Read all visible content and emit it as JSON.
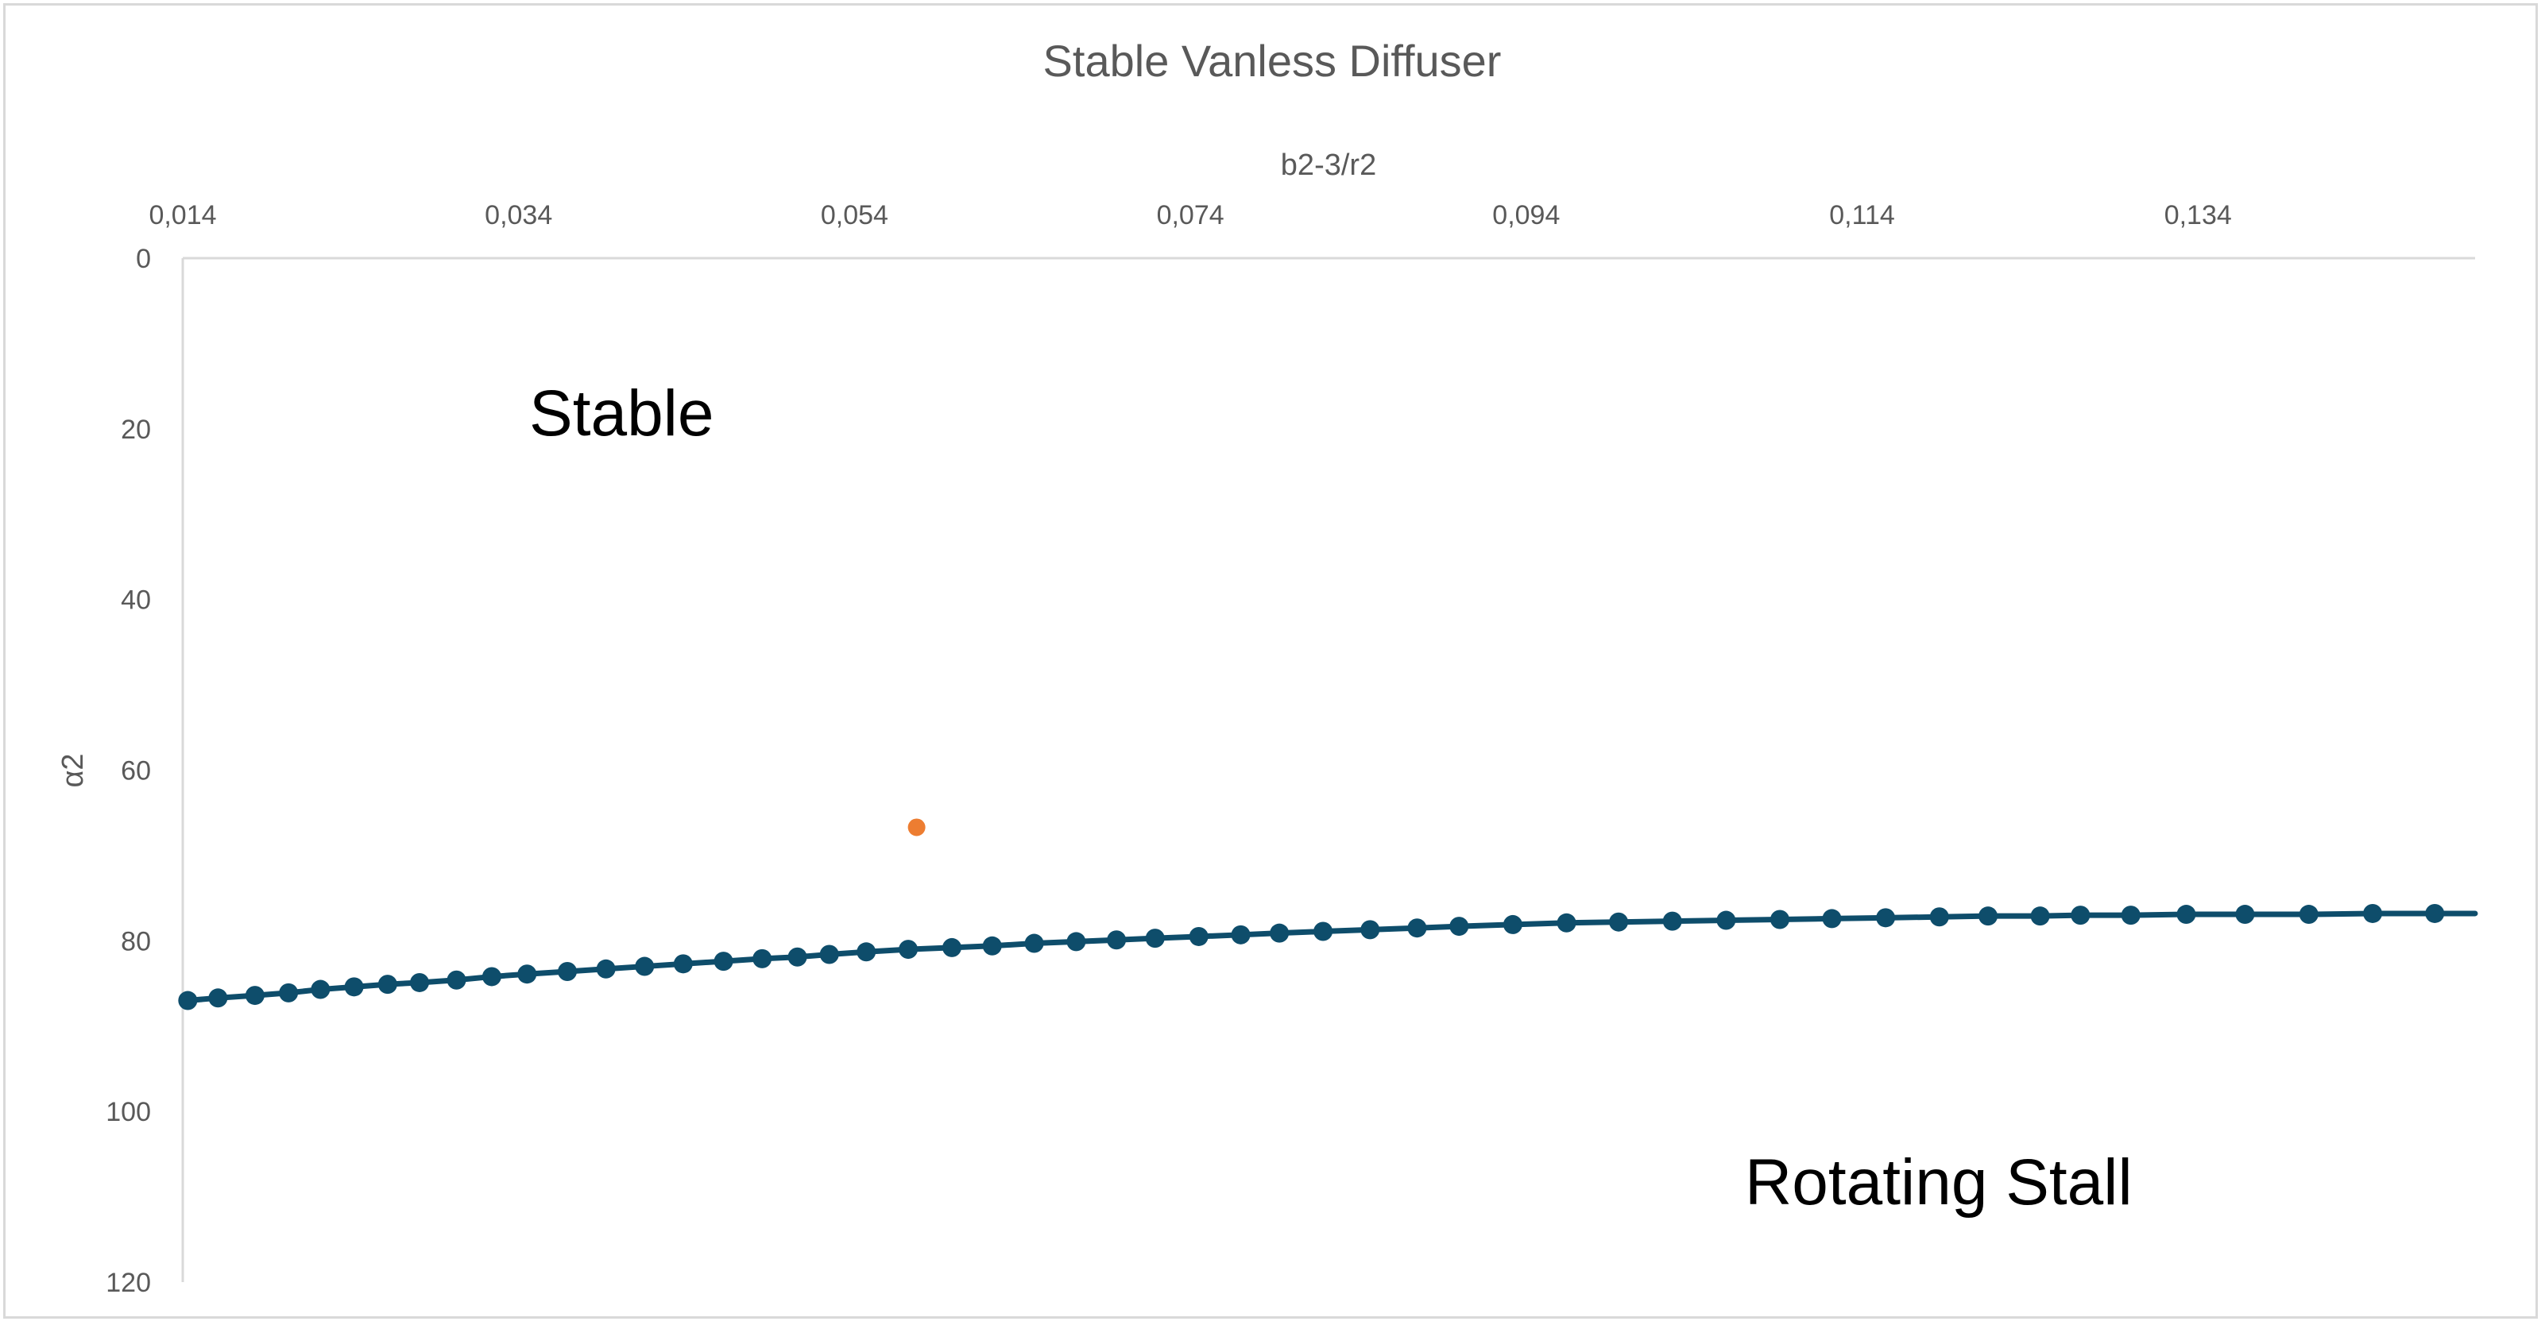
{
  "chart_data": {
    "type": "line",
    "title": "Stable Vanless Diffuser",
    "xlabel": "b2-3/r2",
    "ylabel": "α2",
    "x_axis_position": "top",
    "y_axis_reversed": true,
    "xlim": [
      0.014,
      0.1505
    ],
    "ylim": [
      0,
      120
    ],
    "x_ticks": [
      0.014,
      0.034,
      0.054,
      0.074,
      0.094,
      0.114,
      0.134
    ],
    "x_tick_labels": [
      "0,014",
      "0,034",
      "0,054",
      "0,074",
      "0,094",
      "0,114",
      "0,134"
    ],
    "y_ticks": [
      0,
      20,
      40,
      60,
      80,
      100,
      120
    ],
    "y_tick_labels": [
      "0",
      "20",
      "40",
      "60",
      "80",
      "100",
      "120"
    ],
    "grid": false,
    "legend": "none",
    "annotations": [
      {
        "text": "Stable",
        "x": 0.035,
        "y": 18
      },
      {
        "text": "Rotating Stall",
        "x": 0.1065,
        "y": 108
      }
    ],
    "series": [
      {
        "color": "#0e4d6b",
        "marker": "circle",
        "line": true,
        "x": [
          0.0143,
          0.0161,
          0.0183,
          0.0203,
          0.0222,
          0.0242,
          0.0262,
          0.0281,
          0.0303,
          0.0324,
          0.0345,
          0.0369,
          0.0392,
          0.0415,
          0.0438,
          0.0462,
          0.0485,
          0.0506,
          0.0525,
          0.0547,
          0.0572,
          0.0598,
          0.0622,
          0.0647,
          0.0672,
          0.0696,
          0.0719,
          0.0745,
          0.077,
          0.0793,
          0.0819,
          0.0847,
          0.0875,
          0.09,
          0.0932,
          0.0964,
          0.0995,
          0.1027,
          0.1059,
          0.1091,
          0.1122,
          0.1154,
          0.1186,
          0.1215,
          0.1246,
          0.127,
          0.13,
          0.1333,
          0.1368,
          0.1406,
          0.1444,
          0.1481
        ],
        "y": [
          87.0,
          86.7,
          86.4,
          86.1,
          85.7,
          85.4,
          85.1,
          84.9,
          84.6,
          84.2,
          83.9,
          83.6,
          83.3,
          83.0,
          82.7,
          82.4,
          82.1,
          81.9,
          81.6,
          81.3,
          81.0,
          80.8,
          80.6,
          80.3,
          80.1,
          79.9,
          79.7,
          79.5,
          79.3,
          79.1,
          78.9,
          78.7,
          78.5,
          78.3,
          78.1,
          77.9,
          77.8,
          77.7,
          77.6,
          77.5,
          77.4,
          77.3,
          77.2,
          77.1,
          77.1,
          77.0,
          77.0,
          76.9,
          76.9,
          76.9,
          76.8,
          76.8
        ]
      },
      {
        "color": "#ed7d31",
        "marker": "circle",
        "line": false,
        "x": [
          0.0577
        ],
        "y": [
          66.7
        ]
      }
    ]
  }
}
